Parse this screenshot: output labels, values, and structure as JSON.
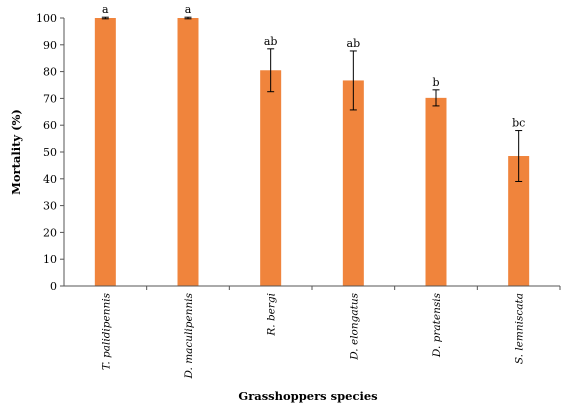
{
  "chart_data": {
    "type": "bar",
    "title": "",
    "xlabel": "Grasshoppers species",
    "ylabel": "Mortality (%)",
    "ylim": [
      0,
      100
    ],
    "yticks": [
      0,
      10,
      20,
      30,
      40,
      50,
      60,
      70,
      80,
      90,
      100
    ],
    "categories": [
      "T. palidipennis",
      "D. maculipennis",
      "R. bergi",
      "D. elongatus",
      "D. pratensis",
      "S. lemniscata"
    ],
    "values": [
      100,
      100,
      80.5,
      76.7,
      70.2,
      48.5
    ],
    "error": [
      0.3,
      0.3,
      8.0,
      11.0,
      3.0,
      9.5
    ],
    "significance_letters": [
      "a",
      "a",
      "ab",
      "ab",
      "b",
      "bc"
    ],
    "bar_color": "#f0843c",
    "grid": false,
    "legend": "none"
  }
}
